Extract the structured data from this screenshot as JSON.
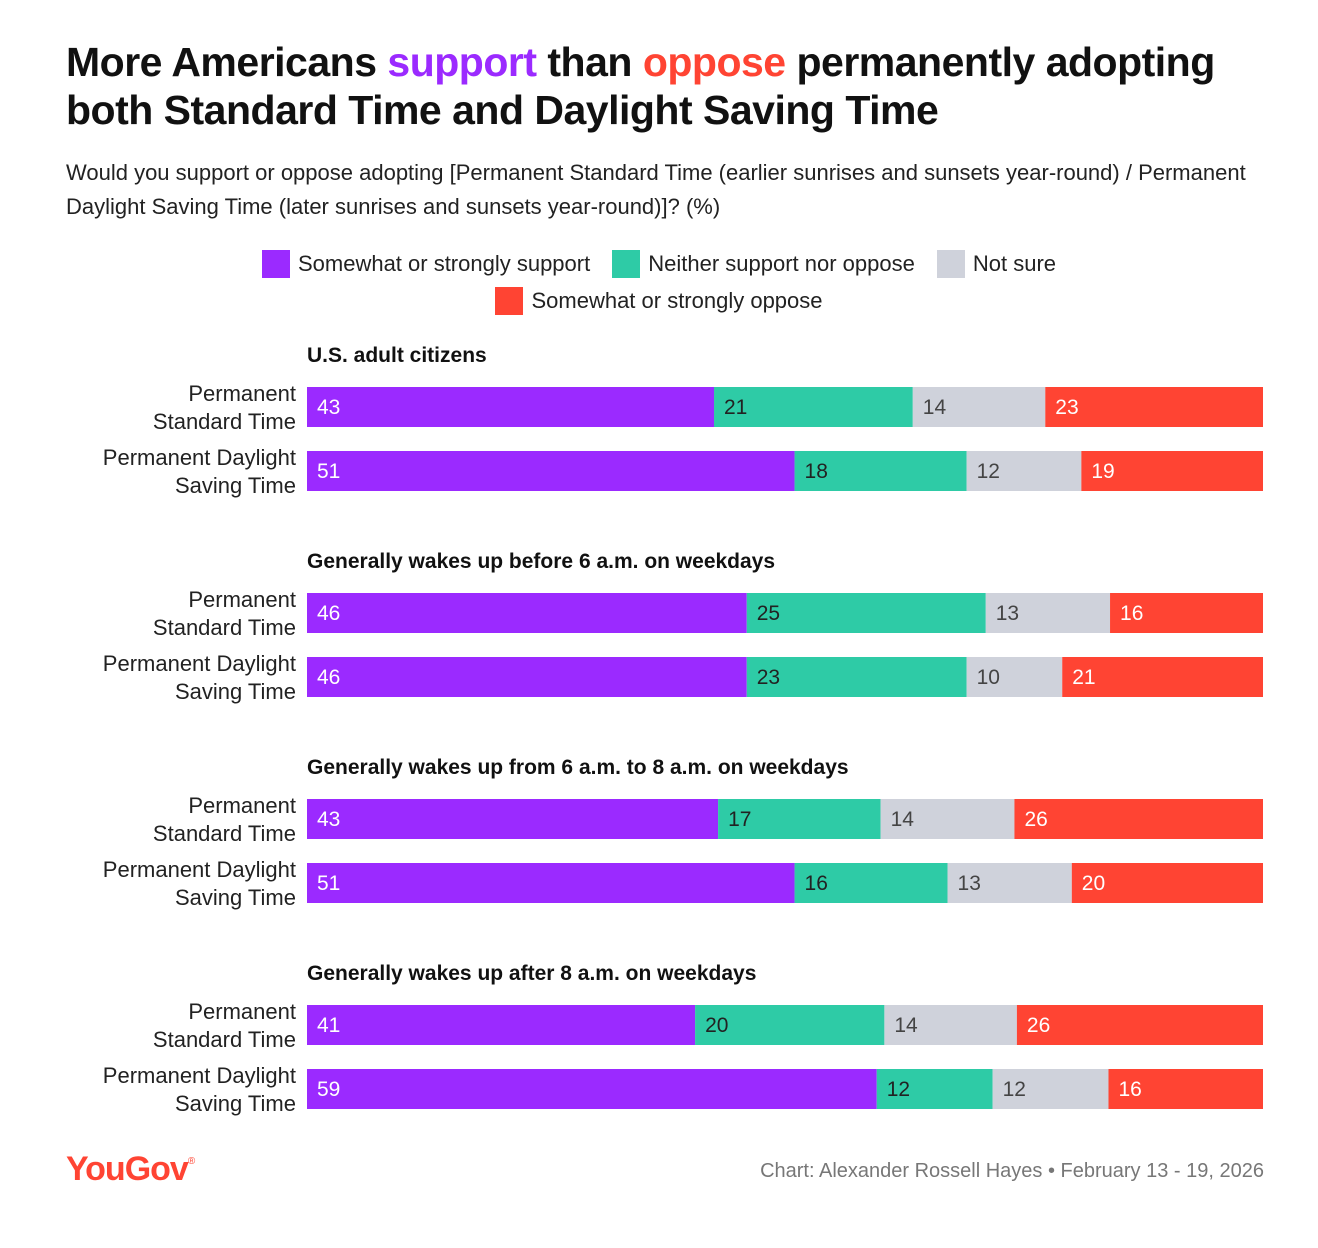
{
  "title": {
    "part1": "More Americans ",
    "support_word": "support",
    "part2": " than ",
    "oppose_word": "oppose",
    "part3": " permanently adopting both Standard Time and Daylight Saving Time"
  },
  "subtitle": "Would you support or oppose adopting [Permanent Standard Time (earlier sunrises and sunsets year-round) / Permanent Daylight Saving Time (later sunrises and sunsets year-round)]? (%)",
  "colors": {
    "support": "#9b2aff",
    "neither": "#2ecba6",
    "not_sure": "#cfd2db",
    "oppose": "#ff4433"
  },
  "legend": {
    "support": "Somewhat or strongly support",
    "neither": "Neither support nor oppose",
    "not_sure": "Not sure",
    "oppose": "Somewhat or strongly oppose"
  },
  "chart_data": {
    "type": "bar",
    "orientation": "horizontal",
    "stacked": true,
    "unit": "%",
    "series_names": [
      "Somewhat or strongly support",
      "Neither support nor oppose",
      "Not sure",
      "Somewhat or strongly oppose"
    ],
    "groups": [
      {
        "label": "U.S. adult citizens",
        "rows": [
          {
            "label_line1": "Permanent",
            "label_line2": "Standard Time",
            "values": [
              43,
              21,
              14,
              23
            ]
          },
          {
            "label_line1": "Permanent Daylight",
            "label_line2": "Saving Time",
            "values": [
              51,
              18,
              12,
              19
            ]
          }
        ]
      },
      {
        "label": "Generally wakes up before 6 a.m. on weekdays",
        "rows": [
          {
            "label_line1": "Permanent",
            "label_line2": "Standard Time",
            "values": [
              46,
              25,
              13,
              16
            ]
          },
          {
            "label_line1": "Permanent Daylight",
            "label_line2": "Saving Time",
            "values": [
              46,
              23,
              10,
              21
            ]
          }
        ]
      },
      {
        "label": "Generally wakes up from 6 a.m. to 8 a.m. on weekdays",
        "rows": [
          {
            "label_line1": "Permanent",
            "label_line2": "Standard Time",
            "values": [
              43,
              17,
              14,
              26
            ]
          },
          {
            "label_line1": "Permanent Daylight",
            "label_line2": "Saving Time",
            "values": [
              51,
              16,
              13,
              20
            ]
          }
        ]
      },
      {
        "label": "Generally wakes up after 8 a.m. on weekdays",
        "rows": [
          {
            "label_line1": "Permanent",
            "label_line2": "Standard Time",
            "values": [
              41,
              20,
              14,
              26
            ]
          },
          {
            "label_line1": "Permanent Daylight",
            "label_line2": "Saving Time",
            "values": [
              59,
              12,
              12,
              16
            ]
          }
        ]
      }
    ]
  },
  "footer": {
    "logo": "YouGov",
    "logo_mark": "®",
    "credit": "Chart: Alexander Rossell Hayes • February 13 - 19, 2026"
  }
}
